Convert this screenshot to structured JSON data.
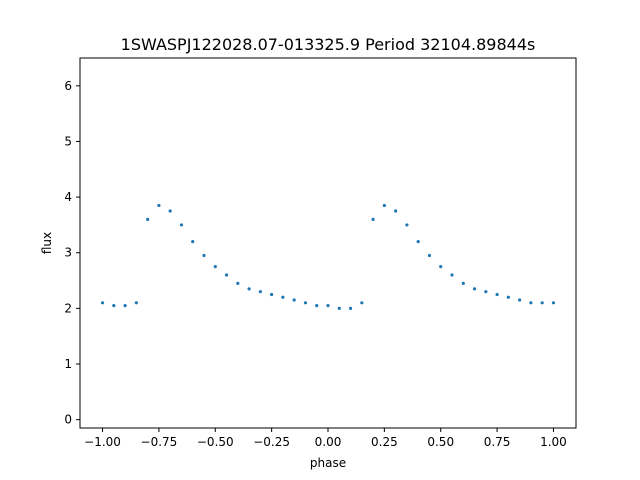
{
  "chart_data": {
    "type": "scatter",
    "title": "1SWASPJ122028.07-013325.9 Period 32104.89844s",
    "xlabel": "phase",
    "ylabel": "flux",
    "xlim": [
      -1.1,
      1.1
    ],
    "ylim": [
      -0.15,
      6.5
    ],
    "x_ticks": [
      -1.0,
      -0.75,
      -0.5,
      -0.25,
      0.0,
      0.25,
      0.5,
      0.75,
      1.0
    ],
    "x_tick_labels": [
      "−1.00",
      "−0.75",
      "−0.50",
      "−0.25",
      "0.00",
      "0.25",
      "0.50",
      "0.75",
      "1.00"
    ],
    "y_ticks": [
      0,
      1,
      2,
      3,
      4,
      5,
      6
    ],
    "y_tick_labels": [
      "0",
      "1",
      "2",
      "3",
      "4",
      "5",
      "6"
    ],
    "grid": false,
    "marker_color": "#1f77b4",
    "series": [
      {
        "x": [
          -1.0,
          -0.95,
          -0.9,
          -0.85,
          -0.8,
          -0.75,
          -0.7,
          -0.65,
          -0.6,
          -0.55,
          -0.5,
          -0.45,
          -0.4,
          -0.35,
          -0.3,
          -0.25,
          -0.2,
          -0.15,
          -0.1,
          -0.05,
          0.0,
          0.05,
          0.1,
          0.15,
          0.2,
          0.25,
          0.3,
          0.35,
          0.4,
          0.45,
          0.5,
          0.55,
          0.6,
          0.65,
          0.7,
          0.75,
          0.8,
          0.85,
          0.9,
          0.95,
          1.0
        ],
        "y": [
          2.1,
          2.05,
          2.05,
          2.1,
          3.6,
          3.85,
          3.75,
          3.5,
          3.2,
          2.95,
          2.75,
          2.6,
          2.45,
          2.35,
          2.3,
          2.25,
          2.2,
          2.15,
          2.1,
          2.05,
          2.05,
          2.0,
          2.0,
          2.1,
          3.6,
          3.85,
          3.75,
          3.5,
          3.2,
          2.95,
          2.75,
          2.6,
          2.45,
          2.35,
          2.3,
          2.25,
          2.2,
          2.15,
          2.1,
          2.1,
          2.1
        ]
      }
    ]
  }
}
